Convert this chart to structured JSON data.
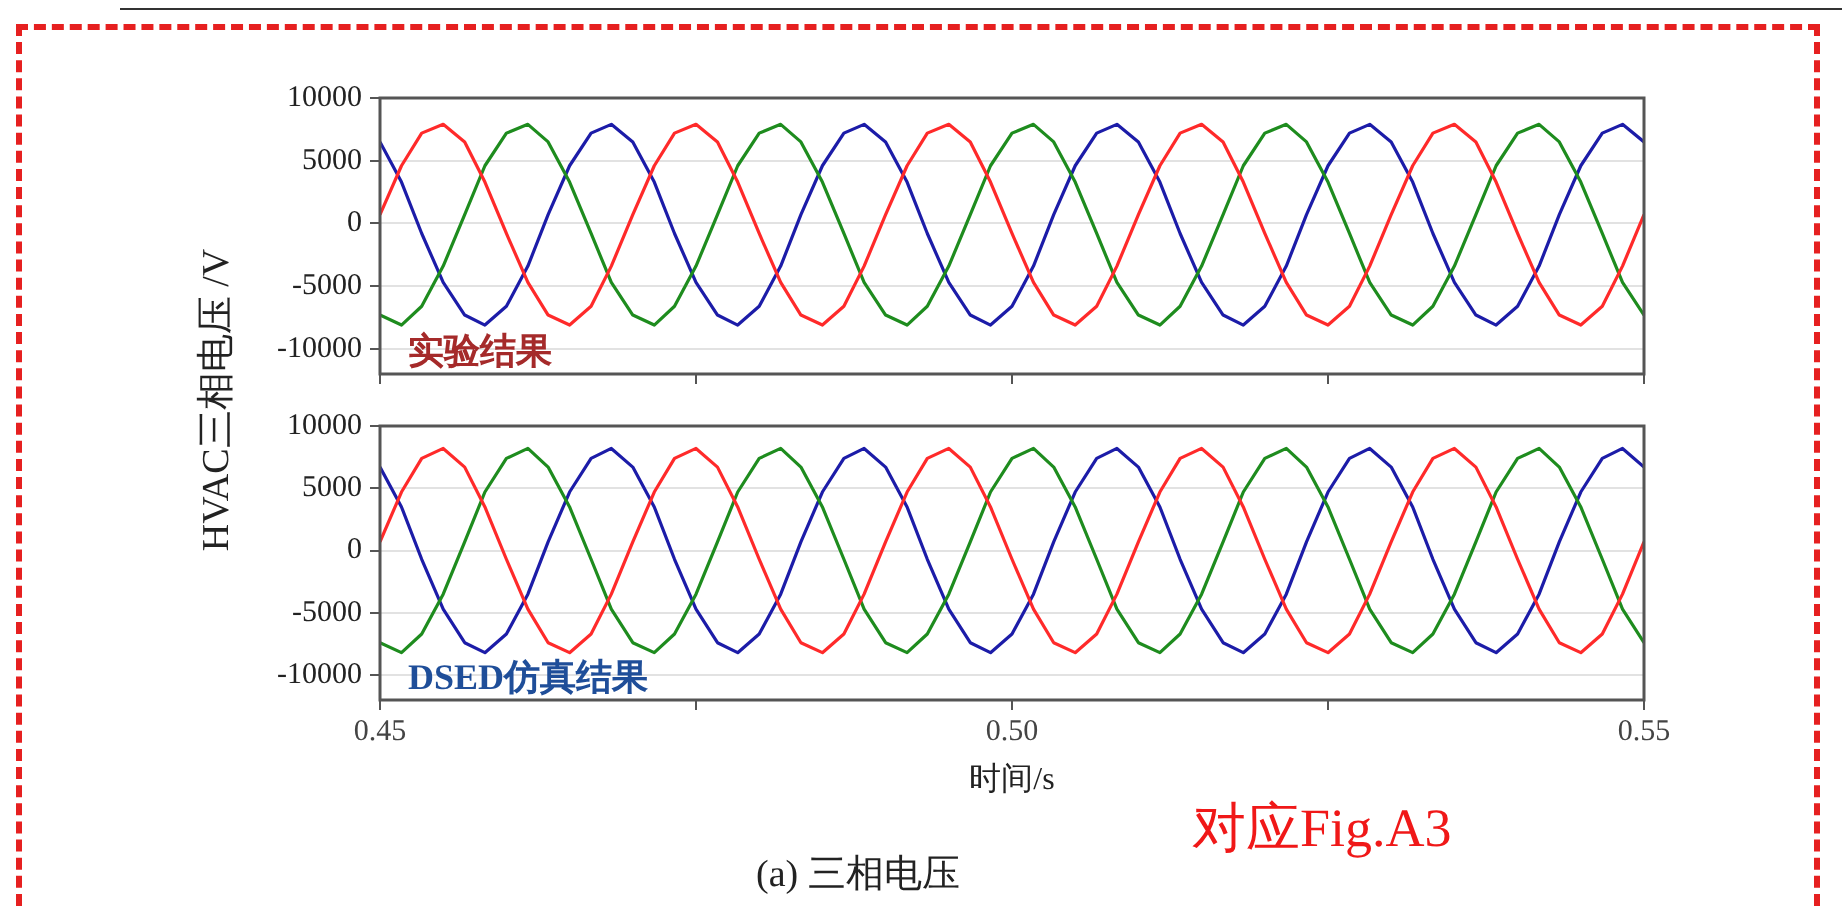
{
  "chart_data": [
    {
      "type": "line",
      "ylabel": "HVAC三相电压 /V",
      "annotations": [
        "实验结果"
      ],
      "x": [
        0.45,
        0.4517,
        0.4533,
        0.455,
        0.4567,
        0.4583,
        0.46,
        0.4617,
        0.4633,
        0.465,
        0.4667,
        0.4683,
        0.47,
        0.4717,
        0.4733,
        0.475,
        0.4767,
        0.4783,
        0.48,
        0.4817,
        0.4833,
        0.485,
        0.4867,
        0.4883,
        0.49,
        0.4917,
        0.4933,
        0.495,
        0.4967,
        0.4983,
        0.5,
        0.5017,
        0.5033,
        0.505,
        0.5067,
        0.5083,
        0.51,
        0.5117,
        0.5133,
        0.515,
        0.5167,
        0.5183,
        0.52,
        0.5217,
        0.5233,
        0.525,
        0.5267,
        0.5283,
        0.53,
        0.5317,
        0.5333,
        0.535,
        0.5367,
        0.5383,
        0.54,
        0.5417,
        0.5433,
        0.545,
        0.5467,
        0.5483,
        0.55
      ],
      "series": [
        {
          "color": "#ff2a2a",
          "values": [
            700,
            4600,
            7200,
            7900,
            6500,
            3300,
            -800,
            -4700,
            -7300,
            -8100,
            -6600,
            -3400,
            700,
            4600,
            7200,
            7900,
            6500,
            3300,
            -800,
            -4700,
            -7300,
            -8100,
            -6600,
            -3400,
            700,
            4600,
            7200,
            7900,
            6500,
            3300,
            -800,
            -4700,
            -7300,
            -8100,
            -6600,
            -3400,
            700,
            4600,
            7200,
            7900,
            6500,
            3300,
            -800,
            -4700,
            -7300,
            -8100,
            -6600,
            -3400,
            700,
            4600,
            7200,
            7900,
            6500,
            3300,
            -800,
            -4700,
            -7300,
            -8100,
            -6600,
            -3400,
            700
          ]
        },
        {
          "color": "#1e8c1e",
          "values": [
            -7300,
            -8100,
            -6600,
            -3400,
            700,
            4600,
            7200,
            7900,
            6500,
            3300,
            -800,
            -4700,
            -7300,
            -8100,
            -6600,
            -3400,
            700,
            4600,
            7200,
            7900,
            6500,
            3300,
            -800,
            -4700,
            -7300,
            -8100,
            -6600,
            -3400,
            700,
            4600,
            7200,
            7900,
            6500,
            3300,
            -800,
            -4700,
            -7300,
            -8100,
            -6600,
            -3400,
            700,
            4600,
            7200,
            7900,
            6500,
            3300,
            -800,
            -4700,
            -7300,
            -8100,
            -6600,
            -3400,
            700,
            4600,
            7200,
            7900,
            6500,
            3300,
            -800,
            -4700,
            -7300
          ]
        },
        {
          "color": "#1c1ca8",
          "values": [
            6500,
            3300,
            -800,
            -4700,
            -7300,
            -8100,
            -6600,
            -3400,
            700,
            4600,
            7200,
            7900,
            6500,
            3300,
            -800,
            -4700,
            -7300,
            -8100,
            -6600,
            -3400,
            700,
            4600,
            7200,
            7900,
            6500,
            3300,
            -800,
            -4700,
            -7300,
            -8100,
            -6600,
            -3400,
            700,
            4600,
            7200,
            7900,
            6500,
            3300,
            -800,
            -4700,
            -7300,
            -8100,
            -6600,
            -3400,
            700,
            4600,
            7200,
            7900,
            6500,
            3300,
            -800,
            -4700,
            -7300,
            -8100,
            -6600,
            -3400,
            700,
            4600,
            7200,
            7900,
            6500
          ]
        }
      ],
      "xlim": [
        0.45,
        0.55
      ],
      "xticks": [
        {
          "value": 0.45,
          "label": null
        },
        {
          "value": 0.475,
          "label": null
        },
        {
          "value": 0.5,
          "label": null
        },
        {
          "value": 0.525,
          "label": null
        },
        {
          "value": 0.55,
          "label": null
        }
      ],
      "ylim": [
        -12000,
        10000
      ],
      "yticks": [
        -10000,
        -5000,
        0,
        5000,
        10000
      ],
      "grid": "y",
      "legend": false,
      "marker": "none",
      "line_style": "solid",
      "tick_labels": "y"
    },
    {
      "type": "line",
      "xlabel": "时间/s",
      "annotations": [
        "DSED仿真结果",
        "对应Fig.A3",
        "(a)  三相电压"
      ],
      "x": [
        0.45,
        0.4517,
        0.4533,
        0.455,
        0.4567,
        0.4583,
        0.46,
        0.4617,
        0.4633,
        0.465,
        0.4667,
        0.4683,
        0.47,
        0.4717,
        0.4733,
        0.475,
        0.4767,
        0.4783,
        0.48,
        0.4817,
        0.4833,
        0.485,
        0.4867,
        0.4883,
        0.49,
        0.4917,
        0.4933,
        0.495,
        0.4967,
        0.4983,
        0.5,
        0.5017,
        0.5033,
        0.505,
        0.5067,
        0.5083,
        0.51,
        0.5117,
        0.5133,
        0.515,
        0.5167,
        0.5183,
        0.52,
        0.5217,
        0.5233,
        0.525,
        0.5267,
        0.5283,
        0.53,
        0.5317,
        0.5333,
        0.535,
        0.5367,
        0.5383,
        0.54,
        0.5417,
        0.5433,
        0.545,
        0.5467,
        0.5483,
        0.55
      ],
      "series": [
        {
          "color": "#ff2a2a",
          "values": [
            700,
            4700,
            7400,
            8200,
            6700,
            3500,
            -700,
            -4700,
            -7400,
            -8200,
            -6700,
            -3500,
            700,
            4700,
            7400,
            8200,
            6700,
            3500,
            -700,
            -4700,
            -7400,
            -8200,
            -6700,
            -3500,
            700,
            4700,
            7400,
            8200,
            6700,
            3500,
            -700,
            -4700,
            -7400,
            -8200,
            -6700,
            -3500,
            700,
            4700,
            7400,
            8200,
            6700,
            3500,
            -700,
            -4700,
            -7400,
            -8200,
            -6700,
            -3500,
            700,
            4700,
            7400,
            8200,
            6700,
            3500,
            -700,
            -4700,
            -7400,
            -8200,
            -6700,
            -3500,
            700
          ]
        },
        {
          "color": "#1e8c1e",
          "values": [
            -7400,
            -8200,
            -6700,
            -3500,
            700,
            4700,
            7400,
            8200,
            6700,
            3500,
            -700,
            -4700,
            -7400,
            -8200,
            -6700,
            -3500,
            700,
            4700,
            7400,
            8200,
            6700,
            3500,
            -700,
            -4700,
            -7400,
            -8200,
            -6700,
            -3500,
            700,
            4700,
            7400,
            8200,
            6700,
            3500,
            -700,
            -4700,
            -7400,
            -8200,
            -6700,
            -3500,
            700,
            4700,
            7400,
            8200,
            6700,
            3500,
            -700,
            -4700,
            -7400,
            -8200,
            -6700,
            -3500,
            700,
            4700,
            7400,
            8200,
            6700,
            3500,
            -700,
            -4700,
            -7400
          ]
        },
        {
          "color": "#1c1ca8",
          "values": [
            6700,
            3500,
            -700,
            -4700,
            -7400,
            -8200,
            -6700,
            -3500,
            700,
            4700,
            7400,
            8200,
            6700,
            3500,
            -700,
            -4700,
            -7400,
            -8200,
            -6700,
            -3500,
            700,
            4700,
            7400,
            8200,
            6700,
            3500,
            -700,
            -4700,
            -7400,
            -8200,
            -6700,
            -3500,
            700,
            4700,
            7400,
            8200,
            6700,
            3500,
            -700,
            -4700,
            -7400,
            -8200,
            -6700,
            -3500,
            700,
            4700,
            7400,
            8200,
            6700,
            3500,
            -700,
            -4700,
            -7400,
            -8200,
            -6700,
            -3500,
            700,
            4700,
            7400,
            8200,
            6700
          ]
        }
      ],
      "xlim": [
        0.45,
        0.55
      ],
      "xticks": [
        {
          "value": 0.45,
          "label": "0.45"
        },
        {
          "value": 0.475,
          "label": null
        },
        {
          "value": 0.5,
          "label": "0.50"
        },
        {
          "value": 0.525,
          "label": null
        },
        {
          "value": 0.55,
          "label": "0.55"
        }
      ],
      "ylim": [
        -12000,
        10000
      ],
      "yticks": [
        -10000,
        -5000,
        0,
        5000,
        10000
      ],
      "grid": "y",
      "legend": false,
      "marker": "none",
      "line_style": "solid"
    }
  ]
}
